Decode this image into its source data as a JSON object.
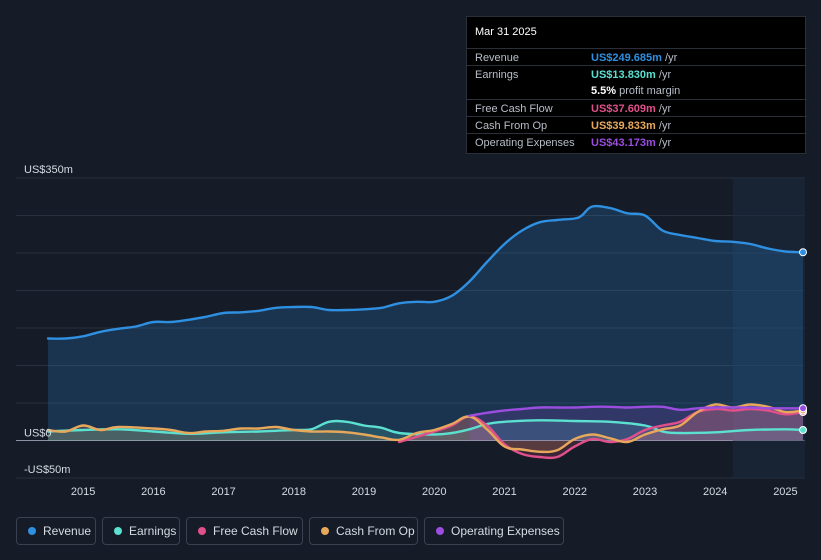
{
  "tooltip": {
    "date": "Mar 31 2025",
    "rows": [
      {
        "label": "Revenue",
        "value": "US$249.685m",
        "unit": "/yr",
        "color": "#2f8fe0"
      },
      {
        "label": "Earnings",
        "value": "US$13.830m",
        "unit": "/yr",
        "color": "#5ce0d0"
      },
      {
        "label": "",
        "value": "5.5%",
        "unit": "profit margin",
        "color": "#ffffff"
      },
      {
        "label": "Free Cash Flow",
        "value": "US$37.609m",
        "unit": "/yr",
        "color": "#e0508a"
      },
      {
        "label": "Cash From Op",
        "value": "US$39.833m",
        "unit": "/yr",
        "color": "#e8a85c"
      },
      {
        "label": "Operating Expenses",
        "value": "US$43.173m",
        "unit": "/yr",
        "color": "#9b4de0"
      }
    ]
  },
  "legend": [
    {
      "label": "Revenue",
      "color": "#2f8fe0"
    },
    {
      "label": "Earnings",
      "color": "#5ce0d0"
    },
    {
      "label": "Free Cash Flow",
      "color": "#e0508a"
    },
    {
      "label": "Cash From Op",
      "color": "#e8a85c"
    },
    {
      "label": "Operating Expenses",
      "color": "#9b4de0"
    }
  ],
  "chart_data": {
    "type": "line",
    "title": "",
    "xlabel": "",
    "ylabel": "",
    "y_tick_labels": [
      "US$350m",
      "US$0",
      "-US$50m"
    ],
    "ylim": [
      -50,
      350
    ],
    "xlim": [
      2014.5,
      2025.25
    ],
    "x_ticks": [
      "2015",
      "2016",
      "2017",
      "2018",
      "2019",
      "2020",
      "2021",
      "2022",
      "2023",
      "2024",
      "2025"
    ],
    "forecast_shade_from": 2024.25,
    "series": [
      {
        "name": "Revenue",
        "color": "#2f8fe0",
        "fill": true,
        "x": [
          2014.5,
          2014.75,
          2015.0,
          2015.25,
          2015.5,
          2015.75,
          2016.0,
          2016.25,
          2016.5,
          2016.75,
          2017.0,
          2017.25,
          2017.5,
          2017.75,
          2018.0,
          2018.25,
          2018.5,
          2018.75,
          2019.0,
          2019.25,
          2019.5,
          2019.75,
          2020.0,
          2020.25,
          2020.5,
          2020.75,
          2021.0,
          2021.25,
          2021.5,
          2021.75,
          2022.0,
          2022.1,
          2022.25,
          2022.5,
          2022.75,
          2023.0,
          2023.25,
          2023.5,
          2023.75,
          2024.0,
          2024.25,
          2024.5,
          2024.75,
          2025.0,
          2025.25
        ],
        "y": [
          136,
          136,
          139,
          145,
          149,
          152,
          158,
          158,
          161,
          165,
          170,
          171,
          173,
          177,
          178,
          178,
          174,
          174,
          175,
          177,
          183,
          185,
          185,
          193,
          212,
          238,
          262,
          280,
          291,
          294,
          296,
          300,
          312,
          310,
          303,
          300,
          280,
          274,
          270,
          266,
          265,
          262,
          256,
          252,
          251
        ]
      },
      {
        "name": "Earnings",
        "color": "#5ce0d0",
        "fill": true,
        "x": [
          2014.5,
          2015.0,
          2015.5,
          2016.0,
          2016.5,
          2017.0,
          2017.5,
          2018.0,
          2018.25,
          2018.5,
          2018.75,
          2019.0,
          2019.25,
          2019.5,
          2020.0,
          2020.25,
          2020.5,
          2020.75,
          2021.0,
          2021.5,
          2022.0,
          2022.5,
          2023.0,
          2023.25,
          2023.5,
          2024.0,
          2024.5,
          2025.0,
          2025.25
        ],
        "y": [
          12,
          14,
          15,
          12,
          9,
          11,
          12,
          14,
          15,
          25,
          25,
          20,
          17,
          10,
          8,
          10,
          15,
          22,
          25,
          27,
          26,
          25,
          20,
          12,
          10,
          11,
          14,
          15,
          14
        ]
      },
      {
        "name": "Free Cash Flow",
        "color": "#e0508a",
        "fill": true,
        "x": [
          2019.5,
          2019.75,
          2020.0,
          2020.25,
          2020.5,
          2020.75,
          2021.0,
          2021.25,
          2021.5,
          2021.75,
          2022.0,
          2022.25,
          2022.5,
          2022.75,
          2023.0,
          2023.25,
          2023.5,
          2023.75,
          2024.0,
          2024.25,
          2024.5,
          2024.75,
          2025.0,
          2025.25
        ],
        "y": [
          -2,
          5,
          12,
          20,
          32,
          20,
          -5,
          -18,
          -22,
          -22,
          -8,
          2,
          -2,
          2,
          14,
          20,
          25,
          38,
          42,
          40,
          42,
          40,
          35,
          38
        ]
      },
      {
        "name": "Cash From Op",
        "color": "#e8a85c",
        "fill": true,
        "x": [
          2014.5,
          2014.75,
          2015.0,
          2015.25,
          2015.5,
          2016.0,
          2016.25,
          2016.5,
          2016.75,
          2017.0,
          2017.25,
          2017.5,
          2017.75,
          2018.0,
          2018.25,
          2018.5,
          2018.75,
          2019.0,
          2019.25,
          2019.5,
          2019.75,
          2020.0,
          2020.25,
          2020.5,
          2020.75,
          2021.0,
          2021.25,
          2021.5,
          2021.75,
          2022.0,
          2022.25,
          2022.5,
          2022.75,
          2023.0,
          2023.25,
          2023.5,
          2023.75,
          2024.0,
          2024.25,
          2024.5,
          2024.75,
          2025.0,
          2025.25
        ],
        "y": [
          14,
          12,
          20,
          14,
          18,
          16,
          14,
          10,
          12,
          13,
          16,
          16,
          18,
          14,
          12,
          12,
          11,
          8,
          4,
          1,
          10,
          14,
          22,
          32,
          15,
          -8,
          -12,
          -15,
          -13,
          2,
          8,
          3,
          -2,
          8,
          15,
          20,
          38,
          48,
          44,
          48,
          45,
          38,
          40
        ]
      },
      {
        "name": "Operating Expenses",
        "color": "#9b4de0",
        "fill": true,
        "x": [
          2020.5,
          2020.75,
          2021.0,
          2021.25,
          2021.5,
          2021.75,
          2022.0,
          2022.25,
          2022.5,
          2022.75,
          2023.0,
          2023.25,
          2023.5,
          2023.75,
          2024.0,
          2024.25,
          2024.5,
          2024.75,
          2025.0,
          2025.25
        ],
        "y": [
          33,
          37,
          40,
          42,
          44,
          44,
          44,
          45,
          45,
          44,
          45,
          45,
          41,
          43,
          44,
          44,
          44,
          43,
          43,
          43
        ]
      }
    ]
  }
}
